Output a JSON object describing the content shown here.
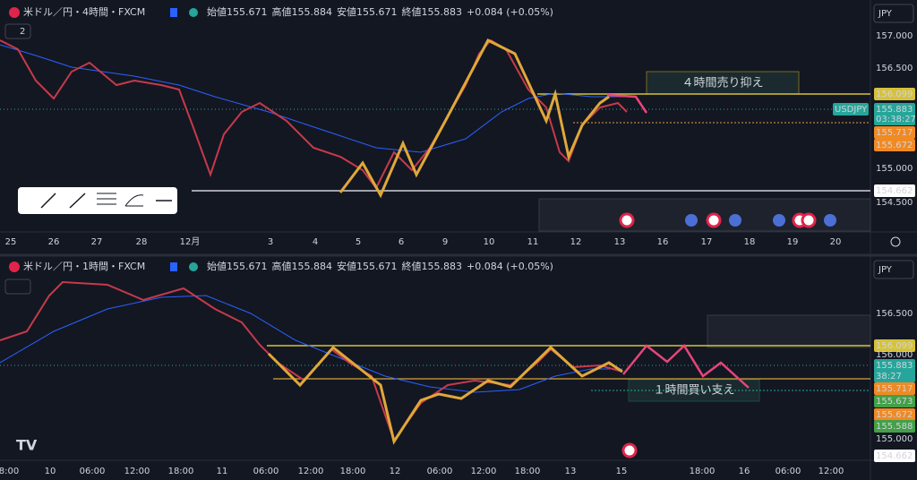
{
  "panels": [
    {
      "symbol": "米ドル／円・4時間・FXCM",
      "indicator_count": "2",
      "ohlc": [
        {
          "label": "始値",
          "value": "155.671"
        },
        {
          "label": "高値",
          "value": "155.884"
        },
        {
          "label": "安値",
          "value": "155.671"
        },
        {
          "label": "終値",
          "value": "155.883"
        },
        {
          "label": "",
          "value": "+0.084 (+0.05%)"
        }
      ],
      "currency": "JPY",
      "price_labels": [
        "157.000",
        "156.500",
        "156.099",
        "USDJPY",
        "155.883",
        "03:38:27",
        "155.717",
        "155.672",
        "155.000",
        "154.662",
        "154.500"
      ],
      "time_labels": [
        "25",
        "26",
        "27",
        "28",
        "12月",
        "3",
        "4",
        "5",
        "6",
        "9",
        "10",
        "11",
        "12",
        "13",
        "16",
        "17",
        "18",
        "19",
        "20"
      ],
      "annotation": "４時間売り抑え"
    },
    {
      "symbol": "米ドル／円・1時間・FXCM",
      "ohlc": [
        {
          "label": "始値",
          "value": "155.671"
        },
        {
          "label": "高値",
          "value": "155.884"
        },
        {
          "label": "安値",
          "value": "155.671"
        },
        {
          "label": "終値",
          "value": "155.883"
        },
        {
          "label": "",
          "value": "+0.084 (+0.05%)"
        }
      ],
      "currency": "JPY",
      "price_labels": [
        "156.500",
        "156.099",
        "156.000",
        "155.883",
        "38:27",
        "155.717",
        "155.673",
        "155.672",
        "155.588",
        "155.000",
        "154.662"
      ],
      "time_labels": [
        "8:00",
        "10",
        "06:00",
        "12:00",
        "18:00",
        "11",
        "06:00",
        "12:00",
        "18:00",
        "12",
        "06:00",
        "12:00",
        "18:00",
        "13",
        "15",
        "18:00",
        "16",
        "06:00",
        "12:00"
      ],
      "annotation": "１時間買い支え"
    }
  ]
}
